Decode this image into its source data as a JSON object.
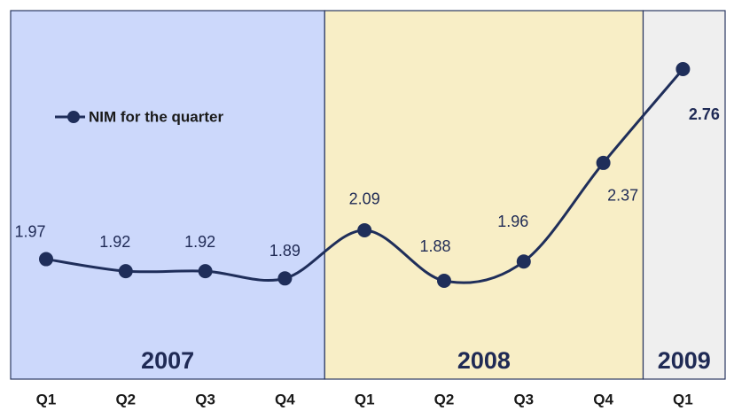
{
  "chart_data": {
    "type": "line",
    "categories": [
      "Q1",
      "Q2",
      "Q3",
      "Q4",
      "Q1",
      "Q2",
      "Q3",
      "Q4",
      "Q1"
    ],
    "years": [
      "2007",
      "2008",
      "2009"
    ],
    "year_colors": [
      "#ccd8fb",
      "#f8eec6",
      "#efefef"
    ],
    "series": [
      {
        "name": "NIM for the quarter",
        "color": "#1f2e5a",
        "values": [
          1.97,
          1.92,
          1.92,
          1.89,
          2.09,
          1.88,
          1.96,
          2.37,
          2.76
        ]
      }
    ],
    "legend": "upper left"
  }
}
